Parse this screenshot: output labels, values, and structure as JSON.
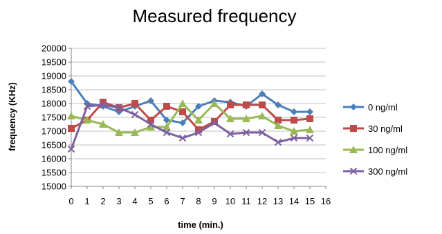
{
  "chart_data": {
    "type": "line",
    "title": "Measured frequency",
    "xlabel": "time (min.)",
    "ylabel": "frequency (KHz)",
    "xlim": [
      0,
      16
    ],
    "ylim": [
      15000,
      20000
    ],
    "x_ticks": [
      0,
      1,
      2,
      3,
      4,
      5,
      6,
      7,
      8,
      9,
      10,
      11,
      12,
      13,
      14,
      15,
      16
    ],
    "y_ticks": [
      15000,
      15500,
      16000,
      16500,
      17000,
      17500,
      18000,
      18500,
      19000,
      19500,
      20000
    ],
    "grid": true,
    "legend_position": "right",
    "x": [
      0,
      1,
      2,
      3,
      4,
      5,
      6,
      7,
      8,
      9,
      10,
      11,
      12,
      13,
      14,
      15
    ],
    "series": [
      {
        "name": "0 ng/ml",
        "color": "#4a7ebb",
        "marker": "diamond",
        "values": [
          18800,
          18000,
          17900,
          17700,
          17900,
          18100,
          17400,
          17300,
          17900,
          18100,
          18050,
          17900,
          18350,
          17950,
          17700,
          17700
        ]
      },
      {
        "name": "30 ng/ml",
        "color": "#be4b48",
        "marker": "square",
        "values": [
          17100,
          17400,
          18050,
          17850,
          18000,
          17400,
          17900,
          17700,
          17050,
          17350,
          17950,
          17950,
          17950,
          17400,
          17400,
          17450
        ]
      },
      {
        "name": "100 ng/ml",
        "color": "#98b954",
        "marker": "triangle",
        "values": [
          17550,
          17400,
          17250,
          16950,
          16950,
          17150,
          17150,
          18000,
          17400,
          18000,
          17450,
          17450,
          17550,
          17200,
          17000,
          17050
        ]
      },
      {
        "name": "300 ng/ml",
        "color": "#7d60a0",
        "marker": "x",
        "values": [
          16350,
          17900,
          17950,
          17850,
          17600,
          17250,
          16950,
          16750,
          16950,
          17300,
          16900,
          16950,
          16950,
          16600,
          16750,
          16750
        ]
      }
    ]
  }
}
